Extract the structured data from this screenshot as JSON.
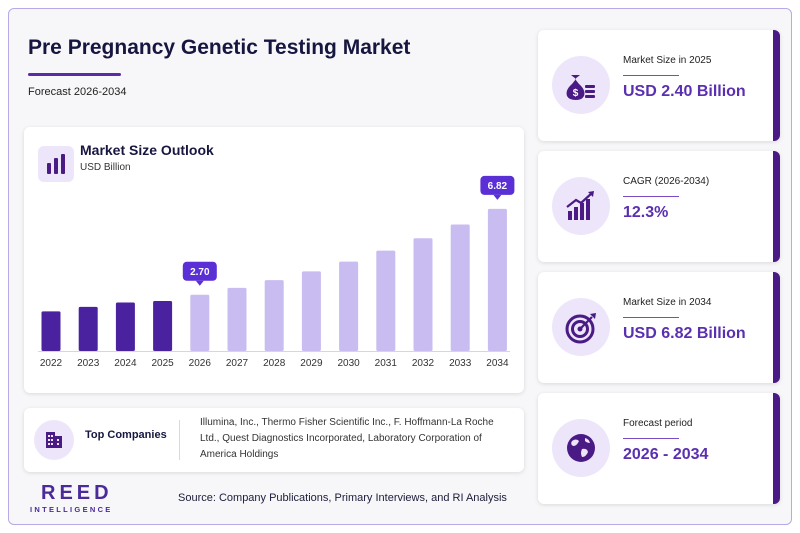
{
  "header": {
    "title": "Pre Pregnancy Genetic Testing Market",
    "subtitle": "Forecast 2026-2034"
  },
  "chart_data": {
    "type": "bar",
    "title": "Market Size Outlook",
    "ylabel": "USD Billion",
    "categories": [
      "2022",
      "2023",
      "2024",
      "2025",
      "2026",
      "2027",
      "2028",
      "2029",
      "2030",
      "2031",
      "2032",
      "2033",
      "2034"
    ],
    "values": [
      1.9,
      2.12,
      2.33,
      2.4,
      2.7,
      3.03,
      3.4,
      3.82,
      4.29,
      4.82,
      5.41,
      6.07,
      6.82
    ],
    "historical_count": 4,
    "callouts": [
      {
        "category": "2026",
        "label": "2.70"
      },
      {
        "category": "2034",
        "label": "6.82"
      }
    ],
    "ylim": [
      0,
      7.2
    ],
    "grid": false,
    "colors": {
      "historical": "#4a22a0",
      "forecast": "#c9bcf0",
      "callout": "#5a2fd6"
    }
  },
  "companies": {
    "label": "Top Companies",
    "text": "Illumina, Inc., Thermo Fisher Scientific Inc., F. Hoffmann-La Roche Ltd., Quest Diagnostics Incorporated, Laboratory Corporation of America Holdings"
  },
  "stats": [
    {
      "label": "Market Size in 2025",
      "value": "USD 2.40 Billion",
      "icon": "money-bag-icon"
    },
    {
      "label": "CAGR (2026-2034)",
      "value": "12.3%",
      "icon": "growth-chart-icon"
    },
    {
      "label": "Market Size in 2034",
      "value": "USD 6.82 Billion",
      "icon": "target-icon"
    },
    {
      "label": "Forecast period",
      "value": "2026 - 2034",
      "icon": "globe-icon"
    }
  ],
  "footer": {
    "logo_word": "REED",
    "logo_sub": "INTELLIGENCE",
    "source": "Source: Company Publications, Primary Interviews, and RI Analysis"
  },
  "theme": {
    "accent": "#4a1a85",
    "accent_light": "#ede6fb",
    "value_text": "#5a2fb0"
  }
}
